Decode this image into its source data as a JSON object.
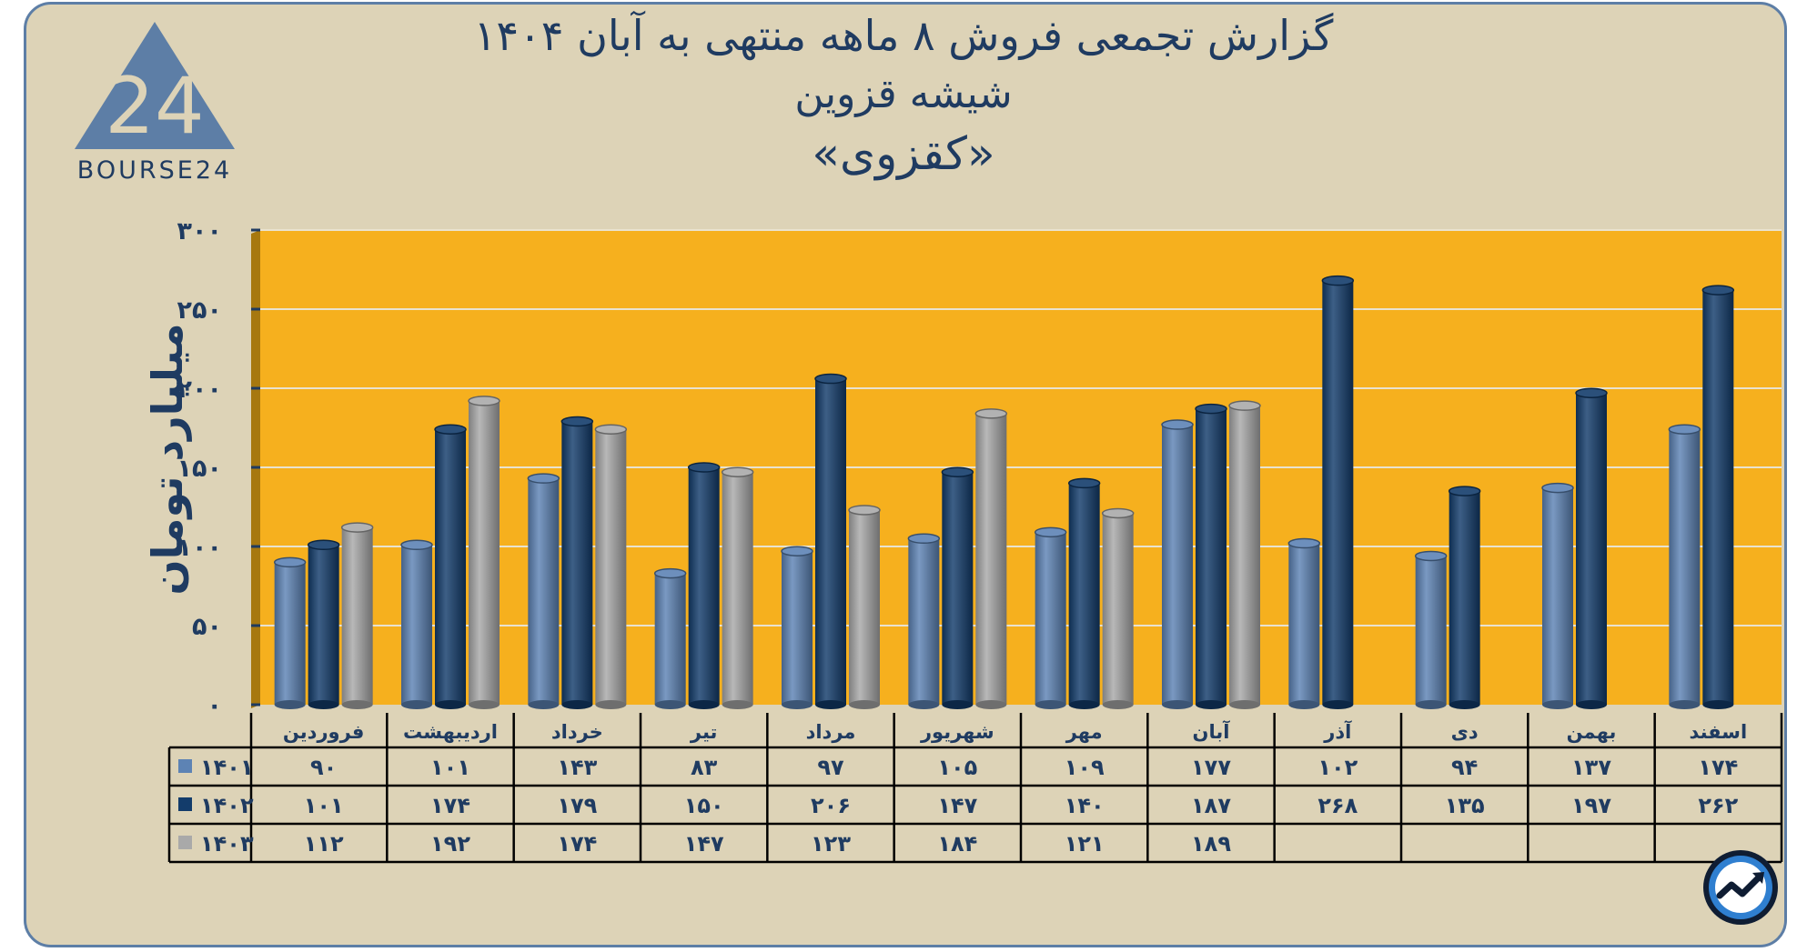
{
  "header": {
    "title_line1": "گزارش تجمعی فروش ۸ ماهه منتهی به آبان ۱۴۰۴",
    "title_line2": "شیشه قزوین",
    "title_line3": "«کقزوی»"
  },
  "logo": {
    "mark_text": "24",
    "brand_text": "BOURSE24",
    "corner_icon": "trend-arrow-icon"
  },
  "colors": {
    "plot_bg": "#f6b01e",
    "series": [
      "#5d83b4",
      "#133c6b",
      "#a9a9a9"
    ]
  },
  "chart_data": {
    "type": "bar",
    "ylabel": "میلیارد تومان",
    "ylim": [
      0,
      300
    ],
    "yticks": [
      "۰",
      "۵۰",
      "۱۰۰",
      "۱۵۰",
      "۲۰۰",
      "۲۵۰",
      "۳۰۰"
    ],
    "ytick_values": [
      0,
      50,
      100,
      150,
      200,
      250,
      300
    ],
    "grid": true,
    "categories": [
      "فروردین",
      "اردیبهشت",
      "خرداد",
      "تیر",
      "مرداد",
      "شهریور",
      "مهر",
      "آبان",
      "آذر",
      "دی",
      "بهمن",
      "اسفند"
    ],
    "series": [
      {
        "name": "۱۴۰۱",
        "values": [
          90,
          101,
          143,
          83,
          97,
          105,
          109,
          177,
          102,
          94,
          137,
          174
        ],
        "labels": [
          "۹۰",
          "۱۰۱",
          "۱۴۳",
          "۸۳",
          "۹۷",
          "۱۰۵",
          "۱۰۹",
          "۱۷۷",
          "۱۰۲",
          "۹۴",
          "۱۳۷",
          "۱۷۴"
        ]
      },
      {
        "name": "۱۴۰۲",
        "values": [
          101,
          174,
          179,
          150,
          206,
          147,
          140,
          187,
          268,
          135,
          197,
          262
        ],
        "labels": [
          "۱۰۱",
          "۱۷۴",
          "۱۷۹",
          "۱۵۰",
          "۲۰۶",
          "۱۴۷",
          "۱۴۰",
          "۱۸۷",
          "۲۶۸",
          "۱۳۵",
          "۱۹۷",
          "۲۶۲"
        ]
      },
      {
        "name": "۱۴۰۳",
        "values": [
          112,
          192,
          174,
          147,
          123,
          184,
          121,
          189,
          null,
          null,
          null,
          null
        ],
        "labels": [
          "۱۱۲",
          "۱۹۲",
          "۱۷۴",
          "۱۴۷",
          "۱۲۳",
          "۱۸۴",
          "۱۲۱",
          "۱۸۹",
          "",
          "",
          "",
          ""
        ]
      }
    ]
  }
}
